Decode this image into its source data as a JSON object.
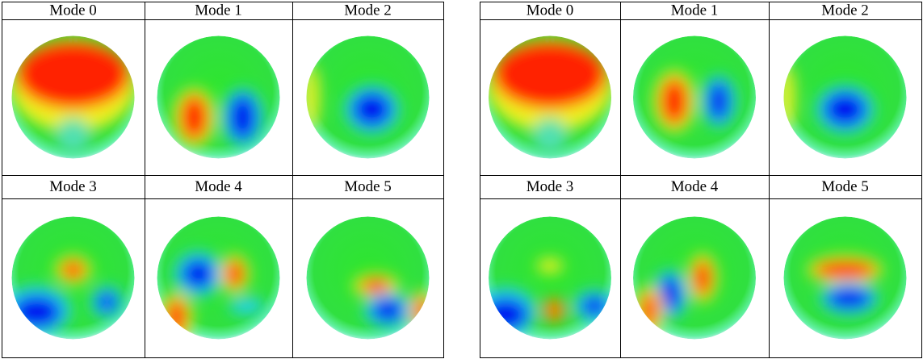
{
  "panels": [
    {
      "labels": [
        "Mode 0",
        "Mode 1",
        "Mode 2",
        "Mode 3",
        "Mode 4",
        "Mode 5"
      ]
    },
    {
      "labels": [
        "Mode 0",
        "Mode 1",
        "Mode 2",
        "Mode 3",
        "Mode 4",
        "Mode 5"
      ]
    }
  ]
}
